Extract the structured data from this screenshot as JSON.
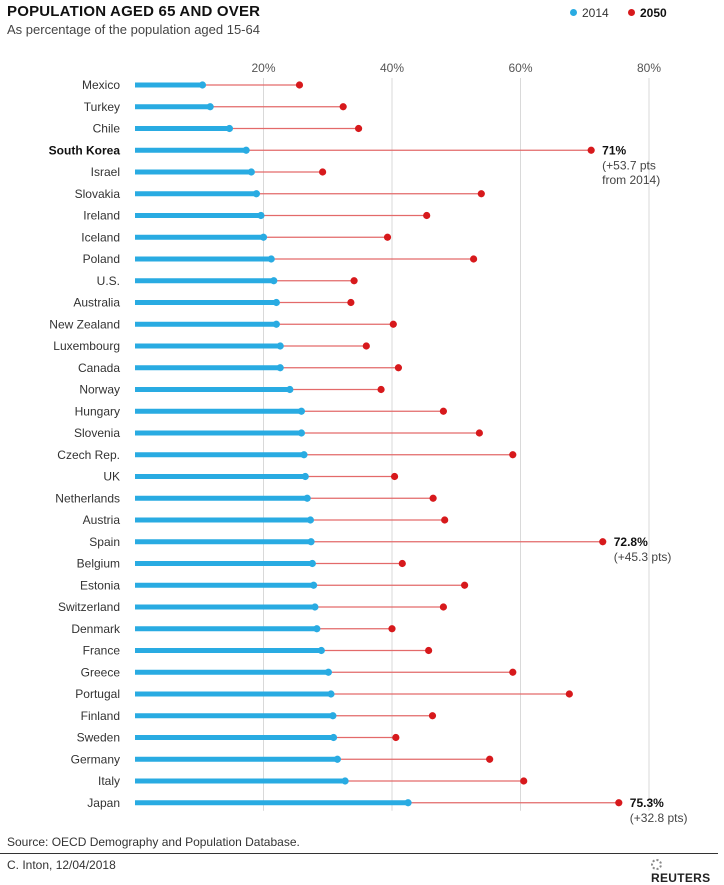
{
  "header": {
    "title": "POPULATION AGED 65 AND OVER",
    "subtitle": "As percentage of the population aged 15-64"
  },
  "legend": {
    "series_2014": "2014",
    "series_2050": "2050"
  },
  "colors": {
    "series_2014": "#29abe2",
    "series_2050": "#d7191c",
    "line_2050": "#e36a6a",
    "grid": "#d9d9d9"
  },
  "chart_data": {
    "type": "dumbbell",
    "title": "POPULATION AGED 65 AND OVER",
    "subtitle": "As percentage of the population aged 15-64",
    "xlim": [
      0,
      80
    ],
    "xticks": [
      20,
      40,
      60,
      80
    ],
    "xtick_labels": [
      "20%",
      "40%",
      "60%",
      "80%"
    ],
    "grid": true,
    "legend_position": "top-right",
    "categories": [
      "Mexico",
      "Turkey",
      "Chile",
      "South Korea",
      "Israel",
      "Slovakia",
      "Ireland",
      "Iceland",
      "Poland",
      "U.S.",
      "Australia",
      "New Zealand",
      "Luxembourg",
      "Canada",
      "Norway",
      "Hungary",
      "Slovenia",
      "Czech Rep.",
      "UK",
      "Netherlands",
      "Austria",
      "Spain",
      "Belgium",
      "Estonia",
      "Switzerland",
      "Denmark",
      "France",
      "Greece",
      "Portugal",
      "Finland",
      "Sweden",
      "Germany",
      "Italy",
      "Japan"
    ],
    "highlighted_category": "South Korea",
    "series": [
      {
        "name": "2014",
        "values": [
          10.5,
          11.7,
          14.7,
          17.3,
          18.1,
          18.9,
          19.6,
          20.0,
          21.2,
          21.6,
          22.0,
          22.0,
          22.6,
          22.6,
          24.1,
          25.9,
          25.9,
          26.3,
          26.5,
          26.8,
          27.3,
          27.4,
          27.6,
          27.8,
          28.0,
          28.3,
          29.0,
          30.1,
          30.5,
          30.8,
          30.9,
          31.5,
          32.7,
          42.5
        ]
      },
      {
        "name": "2050",
        "values": [
          25.6,
          32.4,
          34.8,
          71.0,
          29.2,
          53.9,
          45.4,
          39.3,
          52.7,
          34.1,
          33.6,
          40.2,
          36.0,
          41.0,
          38.3,
          48.0,
          53.6,
          58.8,
          40.4,
          46.4,
          48.2,
          72.8,
          41.6,
          51.3,
          48.0,
          40.0,
          45.7,
          58.8,
          67.6,
          46.3,
          40.6,
          55.2,
          60.5,
          75.3
        ]
      }
    ],
    "annotations": [
      {
        "category": "South Korea",
        "value": "71%",
        "detail": [
          "(+53.7 pts",
          "from 2014)"
        ]
      },
      {
        "category": "Spain",
        "value": "72.8%",
        "detail": [
          "(+45.3 pts)"
        ]
      },
      {
        "category": "Japan",
        "value": "75.3%",
        "detail": [
          "(+32.8 pts)"
        ]
      }
    ]
  },
  "footer": {
    "source": "Source: OECD Demography and Population Database.",
    "credit": "C. Inton, 12/04/2018",
    "logo": "REUTERS"
  }
}
